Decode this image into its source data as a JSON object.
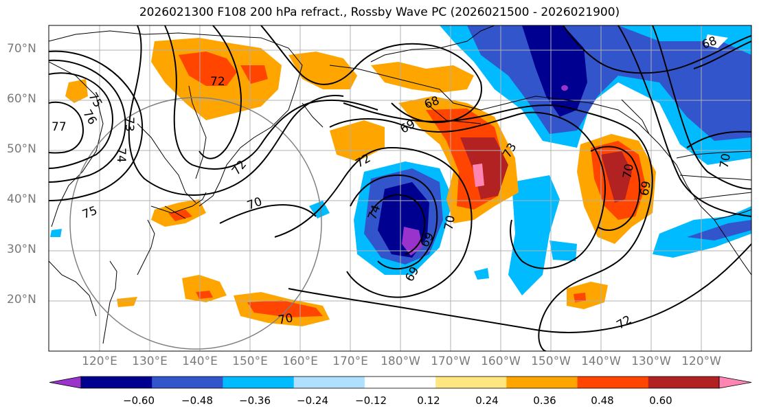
{
  "title": "2026021300 F108 200 hPa refract., Rossby Wave PC (2026021500 - 2026021900)",
  "lat_labels": [
    "70°N",
    "60°N",
    "50°N",
    "40°N",
    "30°N",
    "20°N"
  ],
  "lon_labels": [
    "120°E",
    "130°E",
    "140°E",
    "150°E",
    "160°E",
    "170°E",
    "180°W",
    "170°W",
    "160°W",
    "150°W",
    "140°W",
    "130°W",
    "120°W"
  ],
  "contour_labels": [
    "72",
    "75",
    "77",
    "76",
    "74",
    "73",
    "72",
    "70",
    "75",
    "70",
    "69",
    "68",
    "72",
    "74",
    "70",
    "69",
    "69",
    "73",
    "70",
    "69",
    "72",
    "68",
    "70"
  ],
  "colorbar": {
    "colors": [
      "#9933cc",
      "#000090",
      "#3355cc",
      "#00bbff",
      "#b0e0ff",
      "#ffffff",
      "#ffe680",
      "#ffa500",
      "#ff4500",
      "#b22222",
      "#ff85b3"
    ],
    "tick_labels": [
      "−0.60",
      "−0.48",
      "−0.36",
      "−0.24",
      "−0.12",
      "0.12",
      "0.24",
      "0.36",
      "0.48",
      "0.60"
    ]
  }
}
